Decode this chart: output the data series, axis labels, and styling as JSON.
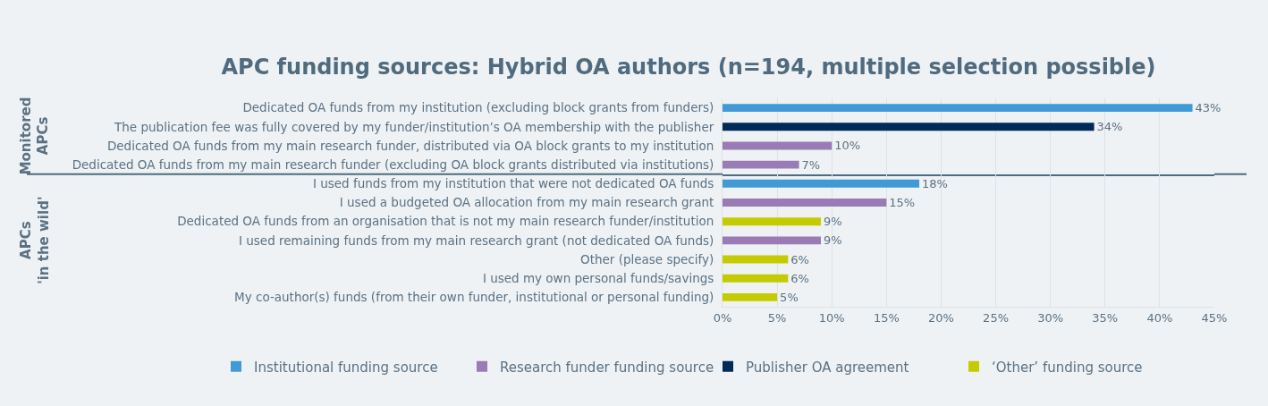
{
  "chart_data": [
    {
      "type": "bar",
      "orientation": "horizontal",
      "title": "APC funding sources: Hybrid OA authors (n=194, multiple selection possible)",
      "ylabel": "Monitored\nAPCs",
      "categories": [
        "Dedicated OA funds from my institution (excluding block grants from funders)",
        "The publication fee was fully covered by my funder/institution’s OA membership with the publisher",
        "Dedicated OA funds from my main research funder, distributed via OA block grants to my institution",
        "Dedicated OA funds from my main research funder (excluding OA block grants distributed via institutions)"
      ],
      "series": [
        {
          "name": "Institutional funding source",
          "color": "#419ad5",
          "values": [
            43,
            null,
            null,
            null
          ],
          "value_labels": [
            "43%",
            null,
            null,
            null
          ]
        },
        {
          "name": "Research funder funding source",
          "color": "#9a7bb5",
          "values": [
            null,
            null,
            10,
            7
          ],
          "value_labels": [
            null,
            null,
            "10%",
            "7%"
          ]
        },
        {
          "name": "Publisher OA agreement",
          "color": "#002a58",
          "values": [
            null,
            34,
            null,
            null
          ],
          "value_labels": [
            null,
            "34%",
            null,
            null
          ]
        }
      ],
      "xlim": [
        0,
        45
      ],
      "xticks": [
        {
          "value": 0,
          "label": "0%"
        },
        {
          "value": 5,
          "label": "5%"
        },
        {
          "value": 10,
          "label": "10%"
        },
        {
          "value": 15,
          "label": "15%"
        },
        {
          "value": 20,
          "label": "20%"
        },
        {
          "value": 25,
          "label": "25%"
        },
        {
          "value": 30,
          "label": "30%"
        },
        {
          "value": 35,
          "label": "35%"
        },
        {
          "value": 40,
          "label": "40%"
        },
        {
          "value": 45,
          "label": "45%"
        }
      ],
      "tick_labels": "y",
      "grid": "x",
      "legend": "bottom"
    },
    {
      "type": "bar",
      "orientation": "horizontal",
      "ylabel": "APCs\n'in the wild'",
      "categories": [
        "I used funds from my institution that were not dedicated OA funds",
        "I used a budgeted OA allocation from my main research grant",
        "Dedicated OA funds from an organisation that is not my main research funder/institution",
        "I used remaining funds from my main research grant (not dedicated OA funds)",
        "Other (please specify)",
        "I used my own personal funds/savings",
        "My co-author(s) funds (from their own funder, institutional or personal funding)"
      ],
      "series": [
        {
          "name": "Institutional funding source",
          "color": "#419ad5",
          "values": [
            18,
            null,
            null,
            null,
            null,
            null,
            null
          ],
          "value_labels": [
            "18%",
            null,
            null,
            null,
            null,
            null,
            null
          ]
        },
        {
          "name": "Research funder funding source",
          "color": "#9a7bb5",
          "values": [
            null,
            15,
            null,
            9,
            null,
            null,
            null
          ],
          "value_labels": [
            null,
            "15%",
            null,
            "9%",
            null,
            null,
            null
          ]
        },
        {
          "name": "‘Other’ funding source",
          "color": "#c4cb00",
          "values": [
            null,
            null,
            9,
            null,
            6,
            6,
            5
          ],
          "value_labels": [
            null,
            null,
            "9%",
            null,
            "6%",
            "6%",
            "5%"
          ]
        }
      ],
      "xlim": [
        0,
        45
      ],
      "xticks": [
        {
          "value": 0,
          "label": "0%"
        },
        {
          "value": 5,
          "label": "5%"
        },
        {
          "value": 10,
          "label": "10%"
        },
        {
          "value": 15,
          "label": "15%"
        },
        {
          "value": 20,
          "label": "20%"
        },
        {
          "value": 25,
          "label": "25%"
        },
        {
          "value": 30,
          "label": "30%"
        },
        {
          "value": 35,
          "label": "35%"
        },
        {
          "value": 40,
          "label": "40%"
        },
        {
          "value": 45,
          "label": "45%"
        }
      ],
      "grid": "x",
      "legend": "bottom"
    }
  ]
}
